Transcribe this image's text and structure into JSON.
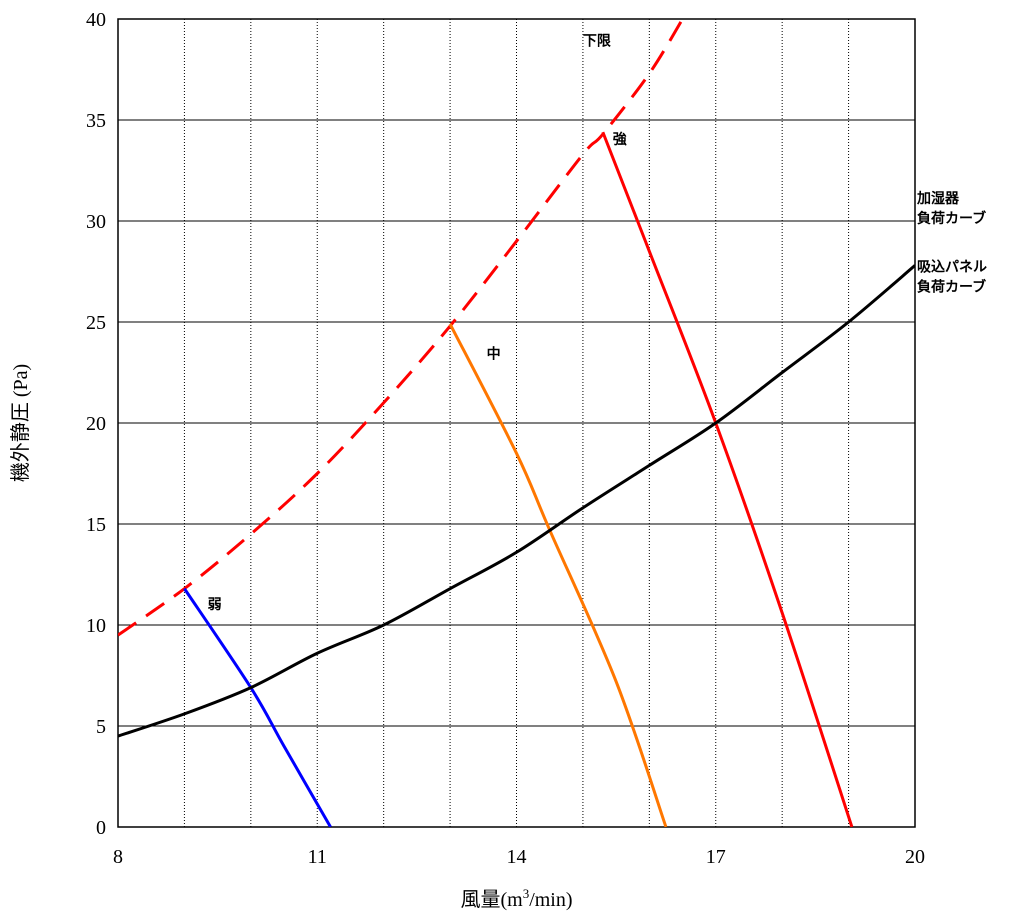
{
  "chart_data": {
    "type": "line",
    "xlabel": "風量(m3/min)",
    "xlabel_main": "風量(m",
    "xlabel_sup": "3",
    "xlabel_tail": "/min)",
    "ylabel": "機外静圧 (Pa)",
    "xlim": [
      8,
      20
    ],
    "ylim": [
      0,
      40
    ],
    "x_ticks": [
      8,
      11,
      14,
      17,
      20
    ],
    "y_ticks": [
      0,
      5,
      10,
      15,
      20,
      25,
      30,
      35,
      40
    ],
    "x_gridlines": [
      9,
      10,
      11,
      12,
      13,
      14,
      15,
      16,
      17,
      18,
      19
    ],
    "y_gridlines": [
      5,
      10,
      15,
      20,
      25,
      30,
      35
    ],
    "grid": true,
    "series": [
      {
        "key": "lower_limit",
        "name": "下限",
        "color": "#ff0000",
        "dashed": true,
        "points": [
          [
            8.0,
            9.5
          ],
          [
            9.0,
            11.8
          ],
          [
            10.0,
            14.5
          ],
          [
            11.0,
            17.5
          ],
          [
            12.0,
            21.0
          ],
          [
            13.0,
            24.8
          ],
          [
            14.0,
            29.0
          ],
          [
            15.0,
            33.3
          ],
          [
            15.3,
            34.3
          ],
          [
            16.0,
            37.3
          ],
          [
            16.5,
            40.0
          ]
        ]
      },
      {
        "key": "weak",
        "name": "弱",
        "color": "#0000ff",
        "dashed": false,
        "points": [
          [
            9.0,
            11.8
          ],
          [
            10.0,
            6.9
          ],
          [
            10.5,
            4.0
          ],
          [
            11.2,
            0.0
          ]
        ]
      },
      {
        "key": "mid",
        "name": "中",
        "color": "#ff7700",
        "dashed": false,
        "points": [
          [
            13.0,
            24.9
          ],
          [
            14.0,
            18.5
          ],
          [
            14.5,
            14.7
          ],
          [
            15.5,
            7.2
          ],
          [
            16.25,
            0.0
          ]
        ]
      },
      {
        "key": "strong",
        "name": "強",
        "color": "#ff0000",
        "dashed": false,
        "points": [
          [
            15.3,
            34.4
          ],
          [
            16.0,
            28.5
          ],
          [
            17.0,
            20.0
          ],
          [
            18.0,
            10.6
          ],
          [
            19.05,
            0.0
          ]
        ]
      },
      {
        "key": "load_curve",
        "name": "吸込パネル負荷カーブ",
        "color": "#000000",
        "dashed": false,
        "points": [
          [
            8.0,
            4.5
          ],
          [
            9.0,
            5.6
          ],
          [
            10.0,
            6.9
          ],
          [
            11.0,
            8.6
          ],
          [
            12.0,
            10.0
          ],
          [
            13.0,
            11.8
          ],
          [
            14.0,
            13.6
          ],
          [
            15.0,
            15.8
          ],
          [
            16.0,
            17.9
          ],
          [
            17.0,
            20.0
          ],
          [
            18.0,
            22.5
          ],
          [
            19.0,
            25.0
          ],
          [
            20.0,
            27.8
          ]
        ]
      }
    ],
    "annotations": [
      {
        "key": "a_lower",
        "text": "下限",
        "x": 15.0,
        "y": 38.7
      },
      {
        "key": "a_strong",
        "text": "強",
        "x": 15.45,
        "y": 33.8
      },
      {
        "key": "a_mid",
        "text": "中",
        "x": 13.55,
        "y": 23.2
      },
      {
        "key": "a_weak",
        "text": "弱",
        "x": 9.35,
        "y": 10.8
      }
    ],
    "side_labels": [
      {
        "key": "humidifier_1",
        "text": "加湿器",
        "y": 30.9
      },
      {
        "key": "humidifier_2",
        "text": "負荷カーブ",
        "y": 29.9
      },
      {
        "key": "panel_1",
        "text": "吸込パネル",
        "y": 27.5
      },
      {
        "key": "panel_2",
        "text": "負荷カーブ",
        "y": 26.5
      }
    ]
  }
}
